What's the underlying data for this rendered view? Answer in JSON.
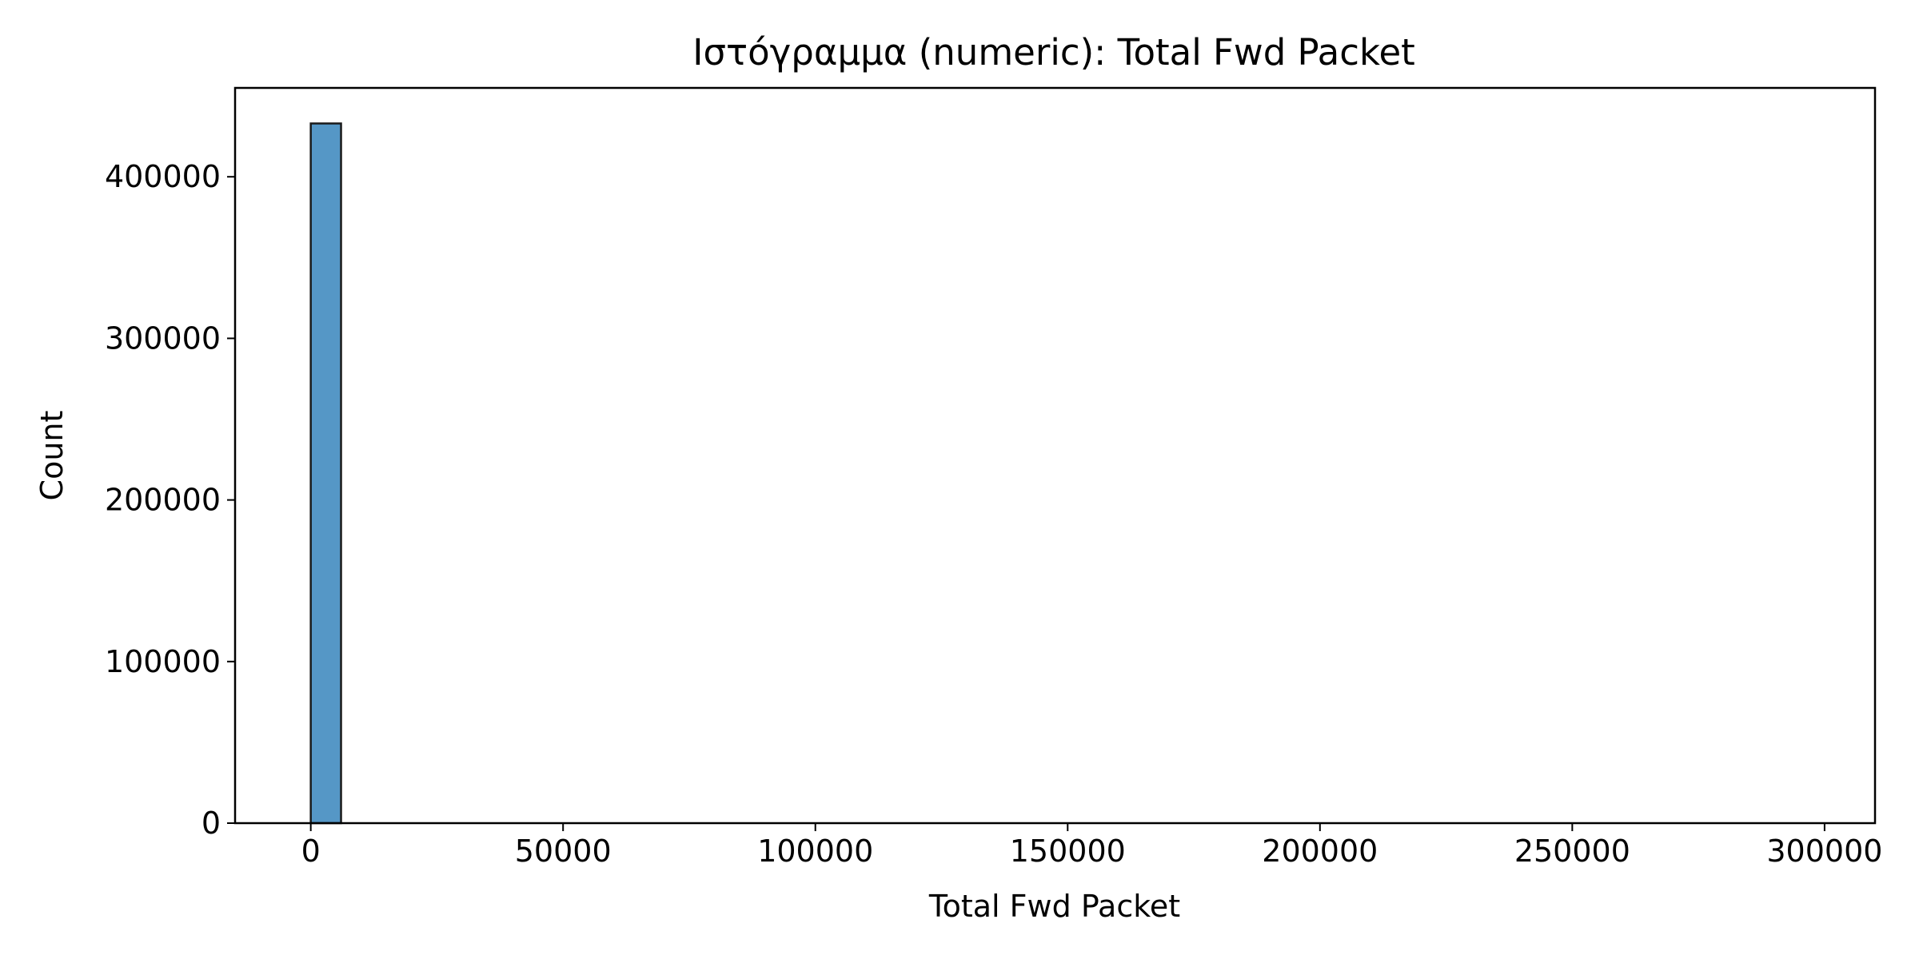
{
  "chart_data": {
    "type": "bar",
    "title": "Ιστόγραμμα (numeric): Total Fwd Packet",
    "xlabel": "Total Fwd Packet",
    "ylabel": "Count",
    "xlim": [
      -15000,
      310000
    ],
    "ylim": [
      0,
      455000
    ],
    "xticks": [
      0,
      50000,
      100000,
      150000,
      200000,
      250000,
      300000
    ],
    "yticks": [
      0,
      100000,
      200000,
      300000,
      400000
    ],
    "bins": [
      {
        "x0": 0,
        "x1": 6000,
        "count": 433000
      }
    ],
    "grid": false,
    "colors": {
      "bar": "#5597c6",
      "edge": "#1a1a1a"
    }
  }
}
